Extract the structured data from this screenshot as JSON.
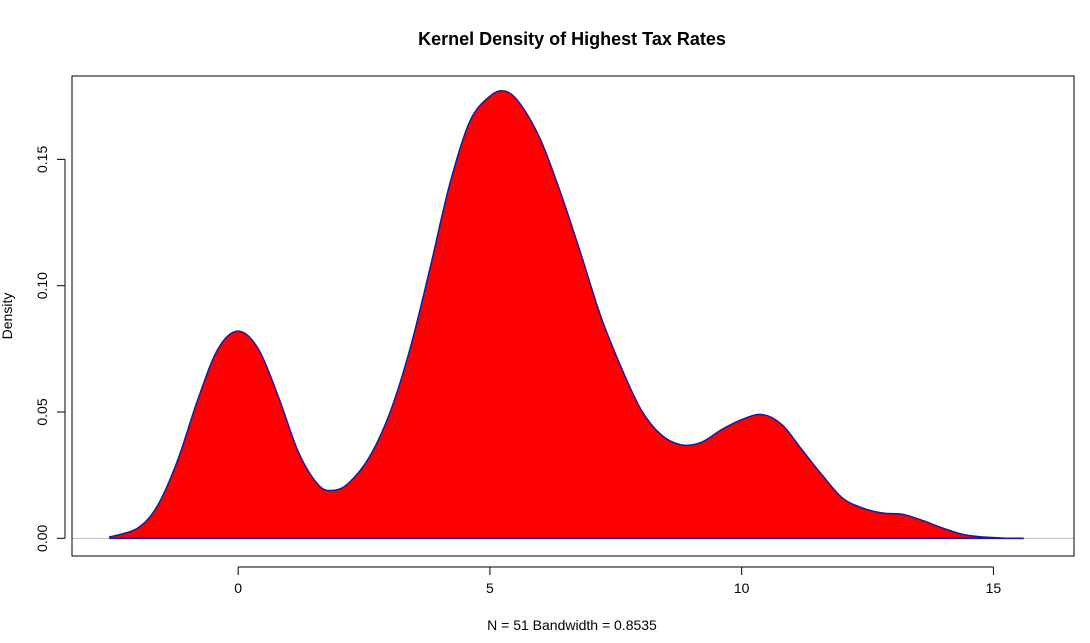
{
  "chart_data": {
    "type": "area",
    "title": "Kernel Density of Highest Tax Rates",
    "xlabel": "N = 51   Bandwidth = 0.8535",
    "ylabel": "Density",
    "xlim": [
      -3.3,
      16.6
    ],
    "ylim": [
      -0.007,
      0.183
    ],
    "x_ticks": [
      0,
      5,
      10,
      15
    ],
    "y_ticks": [
      0.0,
      0.05,
      0.1,
      0.15
    ],
    "x_tick_labels": [
      "0",
      "5",
      "10",
      "15"
    ],
    "y_tick_labels": [
      "0.00",
      "0.05",
      "0.10",
      "0.15"
    ],
    "grid": false,
    "fill_color": "#ff0000",
    "line_color": "#1a1a99",
    "zero_line_color": "#bebebe",
    "series": [
      {
        "x": [
          -2.56,
          -2.0,
          -1.6,
          -1.2,
          -0.8,
          -0.4,
          0.0,
          0.4,
          0.8,
          1.2,
          1.6,
          1.9,
          2.2,
          2.6,
          3.0,
          3.4,
          3.8,
          4.2,
          4.6,
          5.0,
          5.3,
          5.6,
          6.0,
          6.4,
          6.8,
          7.2,
          7.6,
          8.0,
          8.4,
          8.8,
          9.2,
          9.6,
          10.0,
          10.4,
          10.8,
          11.2,
          11.6,
          12.0,
          12.4,
          12.8,
          13.2,
          13.6,
          14.0,
          14.4,
          14.8,
          15.2,
          15.6
        ],
        "y": [
          0.0005,
          0.004,
          0.013,
          0.031,
          0.055,
          0.075,
          0.082,
          0.075,
          0.056,
          0.034,
          0.021,
          0.019,
          0.022,
          0.032,
          0.049,
          0.074,
          0.106,
          0.14,
          0.165,
          0.175,
          0.177,
          0.172,
          0.158,
          0.137,
          0.113,
          0.088,
          0.068,
          0.051,
          0.041,
          0.037,
          0.038,
          0.043,
          0.047,
          0.049,
          0.045,
          0.035,
          0.025,
          0.016,
          0.012,
          0.01,
          0.0095,
          0.007,
          0.004,
          0.0015,
          0.0005,
          0.0001,
          0.0
        ]
      }
    ]
  }
}
